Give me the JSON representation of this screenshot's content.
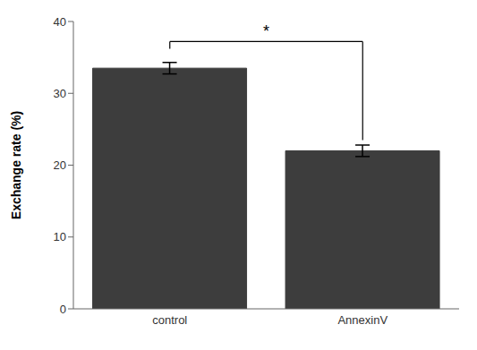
{
  "chart_data": {
    "type": "bar",
    "categories": [
      "control",
      "AnnexinV"
    ],
    "values": [
      33.5,
      22.0
    ],
    "errors": [
      0.8,
      0.8
    ],
    "color": "#3d3d3d",
    "ylabel": "Exchange rate (%)",
    "ylim": [
      0,
      40
    ],
    "yticks": [
      0,
      10,
      20,
      30,
      40
    ],
    "grid": false,
    "significance": {
      "label": "*",
      "between": [
        "control",
        "AnnexinV"
      ],
      "y": 37.2,
      "left": 36.2,
      "right": 23.5
    }
  }
}
